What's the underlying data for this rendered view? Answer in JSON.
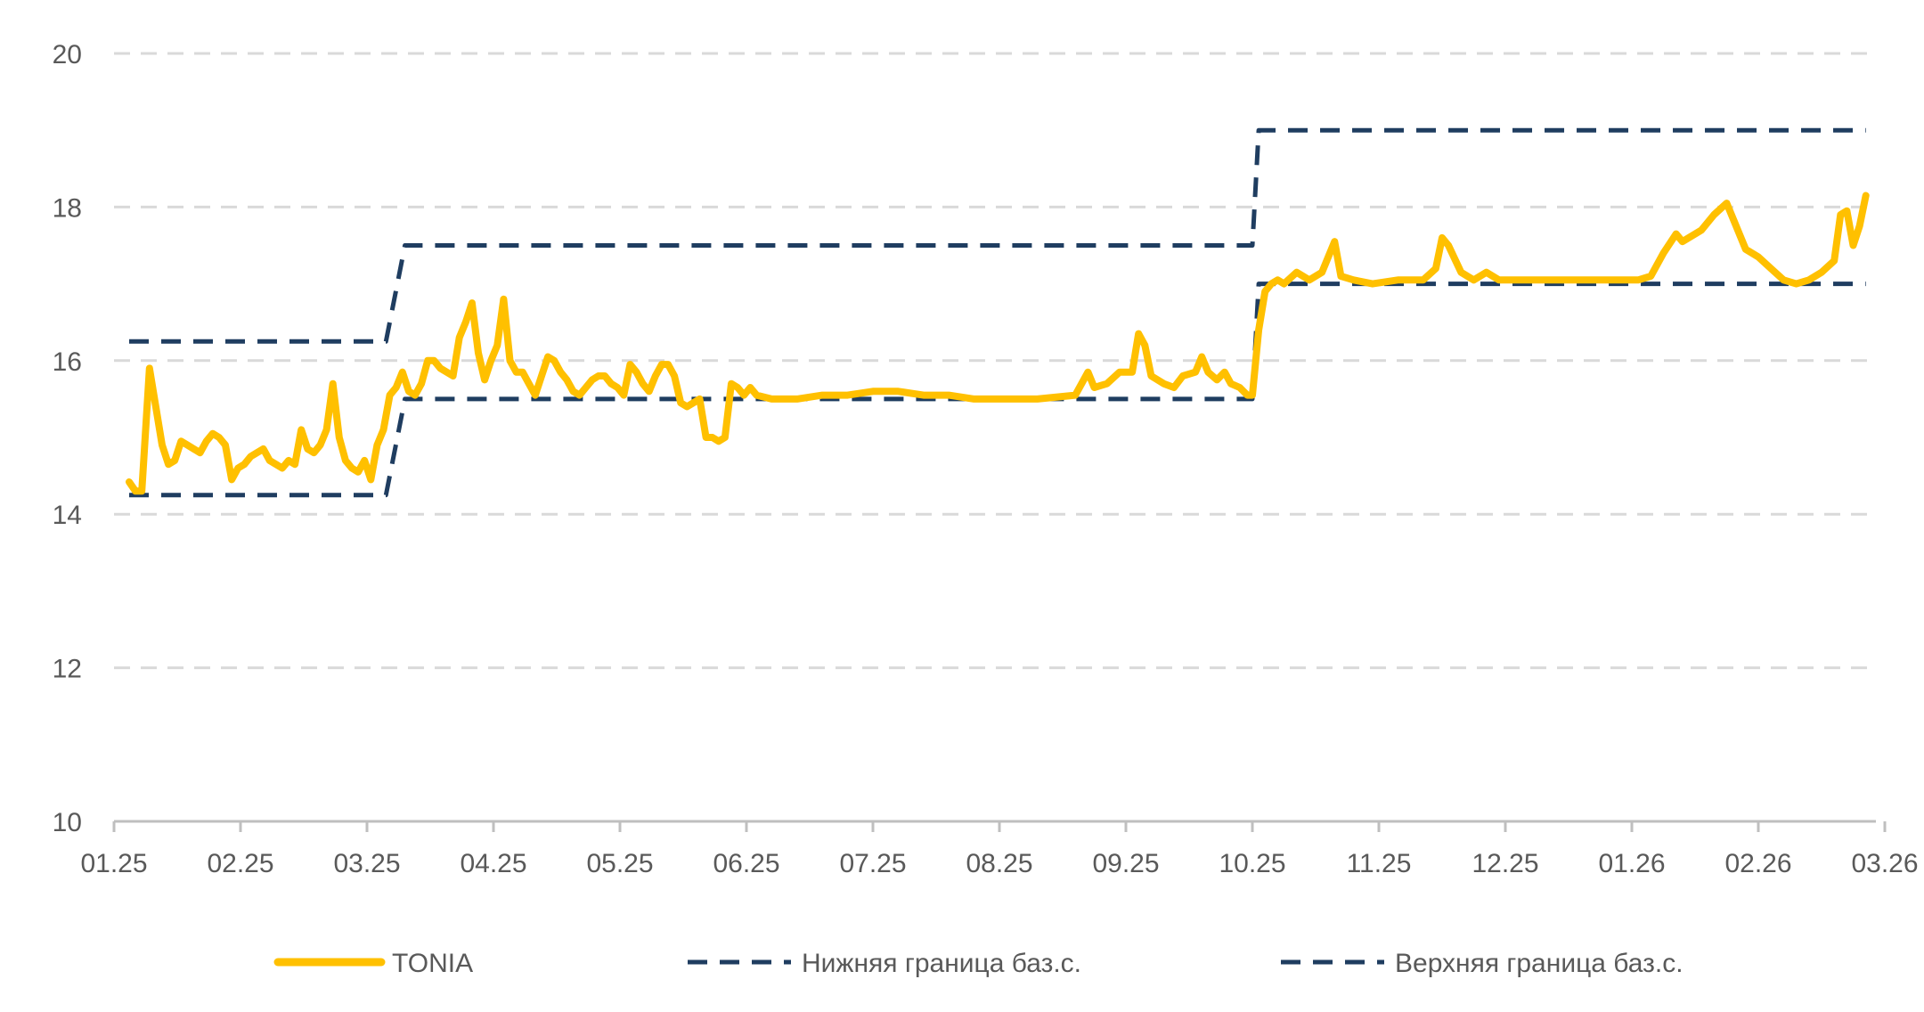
{
  "chart_data": {
    "type": "line",
    "title": "",
    "xlabel": "",
    "ylabel": "",
    "ylim": [
      10,
      20
    ],
    "yticks": [
      10,
      12,
      14,
      16,
      18,
      20
    ],
    "xlim": [
      0,
      14.2
    ],
    "x_ticks": [
      {
        "label": "01.25",
        "x": 0
      },
      {
        "label": "02.25",
        "x": 1
      },
      {
        "label": "03.25",
        "x": 2
      },
      {
        "label": "04.25",
        "x": 3
      },
      {
        "label": "05.25",
        "x": 4
      },
      {
        "label": "06.25",
        "x": 5
      },
      {
        "label": "07.25",
        "x": 6
      },
      {
        "label": "08.25",
        "x": 7
      },
      {
        "label": "09.25",
        "x": 8
      },
      {
        "label": "10.25",
        "x": 9
      },
      {
        "label": "11.25",
        "x": 10
      },
      {
        "label": "12.25",
        "x": 11
      },
      {
        "label": "01.26",
        "x": 12
      },
      {
        "label": "02.26",
        "x": 13
      },
      {
        "label": "03.26",
        "x": 14
      }
    ],
    "grid": true,
    "legend_position": "bottom",
    "series": [
      {
        "name": "TONIA",
        "color": "#FFC000",
        "style": "solid",
        "points": [
          [
            0.12,
            14.42
          ],
          [
            0.17,
            14.3
          ],
          [
            0.22,
            14.3
          ],
          [
            0.28,
            15.9
          ],
          [
            0.33,
            15.4
          ],
          [
            0.38,
            14.9
          ],
          [
            0.43,
            14.65
          ],
          [
            0.48,
            14.7
          ],
          [
            0.53,
            14.95
          ],
          [
            0.58,
            14.9
          ],
          [
            0.63,
            14.85
          ],
          [
            0.68,
            14.8
          ],
          [
            0.73,
            14.95
          ],
          [
            0.78,
            15.05
          ],
          [
            0.83,
            15.0
          ],
          [
            0.88,
            14.9
          ],
          [
            0.93,
            14.45
          ],
          [
            0.98,
            14.6
          ],
          [
            1.03,
            14.65
          ],
          [
            1.08,
            14.75
          ],
          [
            1.13,
            14.8
          ],
          [
            1.18,
            14.85
          ],
          [
            1.23,
            14.7
          ],
          [
            1.28,
            14.65
          ],
          [
            1.33,
            14.6
          ],
          [
            1.38,
            14.7
          ],
          [
            1.43,
            14.65
          ],
          [
            1.48,
            15.1
          ],
          [
            1.53,
            14.85
          ],
          [
            1.58,
            14.8
          ],
          [
            1.63,
            14.9
          ],
          [
            1.68,
            15.1
          ],
          [
            1.73,
            15.7
          ],
          [
            1.78,
            15.0
          ],
          [
            1.83,
            14.7
          ],
          [
            1.88,
            14.6
          ],
          [
            1.93,
            14.55
          ],
          [
            1.98,
            14.7
          ],
          [
            2.03,
            14.45
          ],
          [
            2.08,
            14.9
          ],
          [
            2.13,
            15.1
          ],
          [
            2.18,
            15.55
          ],
          [
            2.23,
            15.65
          ],
          [
            2.28,
            15.85
          ],
          [
            2.33,
            15.6
          ],
          [
            2.38,
            15.55
          ],
          [
            2.43,
            15.7
          ],
          [
            2.48,
            16.0
          ],
          [
            2.53,
            16.0
          ],
          [
            2.58,
            15.9
          ],
          [
            2.63,
            15.85
          ],
          [
            2.68,
            15.8
          ],
          [
            2.73,
            16.3
          ],
          [
            2.78,
            16.5
          ],
          [
            2.83,
            16.75
          ],
          [
            2.88,
            16.1
          ],
          [
            2.93,
            15.75
          ],
          [
            2.98,
            16.0
          ],
          [
            3.03,
            16.2
          ],
          [
            3.08,
            16.8
          ],
          [
            3.13,
            16.0
          ],
          [
            3.18,
            15.85
          ],
          [
            3.23,
            15.85
          ],
          [
            3.28,
            15.7
          ],
          [
            3.33,
            15.55
          ],
          [
            3.38,
            15.8
          ],
          [
            3.43,
            16.05
          ],
          [
            3.48,
            16.0
          ],
          [
            3.53,
            15.85
          ],
          [
            3.58,
            15.75
          ],
          [
            3.63,
            15.6
          ],
          [
            3.68,
            15.55
          ],
          [
            3.73,
            15.65
          ],
          [
            3.78,
            15.75
          ],
          [
            3.83,
            15.8
          ],
          [
            3.88,
            15.8
          ],
          [
            3.93,
            15.7
          ],
          [
            3.98,
            15.65
          ],
          [
            4.03,
            15.55
          ],
          [
            4.08,
            15.95
          ],
          [
            4.13,
            15.85
          ],
          [
            4.18,
            15.7
          ],
          [
            4.23,
            15.6
          ],
          [
            4.28,
            15.8
          ],
          [
            4.33,
            15.95
          ],
          [
            4.38,
            15.95
          ],
          [
            4.43,
            15.8
          ],
          [
            4.48,
            15.45
          ],
          [
            4.53,
            15.4
          ],
          [
            4.58,
            15.45
          ],
          [
            4.63,
            15.5
          ],
          [
            4.68,
            15.0
          ],
          [
            4.73,
            15.0
          ],
          [
            4.78,
            14.95
          ],
          [
            4.83,
            15.0
          ],
          [
            4.88,
            15.7
          ],
          [
            4.93,
            15.65
          ],
          [
            4.98,
            15.55
          ],
          [
            5.03,
            15.65
          ],
          [
            5.08,
            15.55
          ],
          [
            5.2,
            15.5
          ],
          [
            5.4,
            15.5
          ],
          [
            5.6,
            15.55
          ],
          [
            5.8,
            15.55
          ],
          [
            6.0,
            15.6
          ],
          [
            6.2,
            15.6
          ],
          [
            6.4,
            15.55
          ],
          [
            6.6,
            15.55
          ],
          [
            6.8,
            15.5
          ],
          [
            7.0,
            15.5
          ],
          [
            7.3,
            15.5
          ],
          [
            7.6,
            15.55
          ],
          [
            7.7,
            15.85
          ],
          [
            7.75,
            15.65
          ],
          [
            7.85,
            15.7
          ],
          [
            7.95,
            15.85
          ],
          [
            8.05,
            15.85
          ],
          [
            8.1,
            16.35
          ],
          [
            8.15,
            16.2
          ],
          [
            8.2,
            15.8
          ],
          [
            8.3,
            15.7
          ],
          [
            8.38,
            15.65
          ],
          [
            8.45,
            15.8
          ],
          [
            8.55,
            15.85
          ],
          [
            8.6,
            16.05
          ],
          [
            8.65,
            15.85
          ],
          [
            8.72,
            15.75
          ],
          [
            8.78,
            15.85
          ],
          [
            8.83,
            15.7
          ],
          [
            8.9,
            15.65
          ],
          [
            8.96,
            15.55
          ],
          [
            9.0,
            15.55
          ],
          [
            9.05,
            16.4
          ],
          [
            9.1,
            16.9
          ],
          [
            9.15,
            17.0
          ],
          [
            9.2,
            17.05
          ],
          [
            9.25,
            17.0
          ],
          [
            9.35,
            17.15
          ],
          [
            9.45,
            17.05
          ],
          [
            9.55,
            17.15
          ],
          [
            9.65,
            17.55
          ],
          [
            9.7,
            17.1
          ],
          [
            9.8,
            17.05
          ],
          [
            9.95,
            17.0
          ],
          [
            10.15,
            17.05
          ],
          [
            10.35,
            17.05
          ],
          [
            10.45,
            17.2
          ],
          [
            10.5,
            17.6
          ],
          [
            10.55,
            17.5
          ],
          [
            10.65,
            17.15
          ],
          [
            10.75,
            17.05
          ],
          [
            10.85,
            17.15
          ],
          [
            10.95,
            17.05
          ],
          [
            11.15,
            17.05
          ],
          [
            11.35,
            17.05
          ],
          [
            11.6,
            17.05
          ],
          [
            11.85,
            17.05
          ],
          [
            12.05,
            17.05
          ],
          [
            12.15,
            17.1
          ],
          [
            12.25,
            17.4
          ],
          [
            12.35,
            17.65
          ],
          [
            12.4,
            17.55
          ],
          [
            12.55,
            17.7
          ],
          [
            12.65,
            17.9
          ],
          [
            12.75,
            18.05
          ],
          [
            12.8,
            17.85
          ],
          [
            12.9,
            17.45
          ],
          [
            13.0,
            17.35
          ],
          [
            13.1,
            17.2
          ],
          [
            13.2,
            17.05
          ],
          [
            13.3,
            17.0
          ],
          [
            13.4,
            17.05
          ],
          [
            13.5,
            17.15
          ],
          [
            13.6,
            17.3
          ],
          [
            13.65,
            17.9
          ],
          [
            13.7,
            17.95
          ],
          [
            13.75,
            17.5
          ],
          [
            13.8,
            17.75
          ],
          [
            13.85,
            18.15
          ]
        ]
      },
      {
        "name": "Нижняя граница баз.с.",
        "color": "#1F3D60",
        "style": "dashed",
        "points": [
          [
            0.12,
            14.25
          ],
          [
            2.15,
            14.25
          ],
          [
            2.3,
            15.5
          ],
          [
            9.0,
            15.5
          ],
          [
            9.05,
            17.0
          ],
          [
            13.85,
            17.0
          ]
        ]
      },
      {
        "name": "Верхняя граница баз.с.",
        "color": "#1F3D60",
        "style": "dashed",
        "points": [
          [
            0.12,
            16.25
          ],
          [
            2.15,
            16.25
          ],
          [
            2.3,
            17.5
          ],
          [
            9.0,
            17.5
          ],
          [
            9.05,
            19.0
          ],
          [
            13.85,
            19.0
          ]
        ]
      }
    ]
  }
}
